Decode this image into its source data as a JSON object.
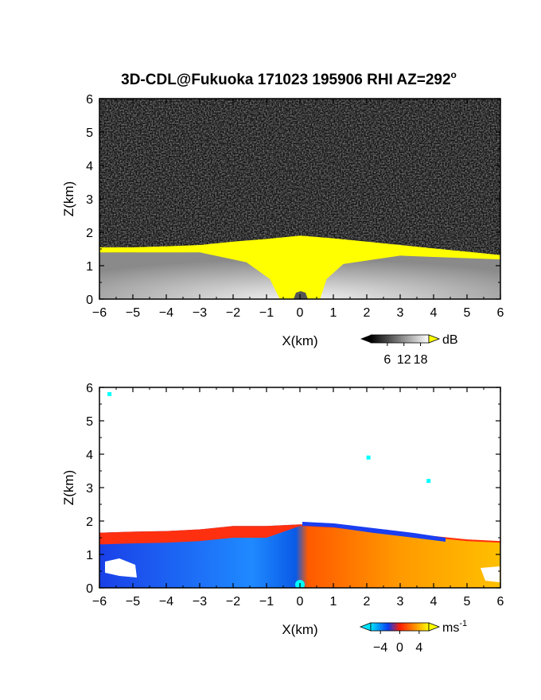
{
  "chart_data": {
    "title": "3D-CDL@Fukuoka 171023 195906 RHI AZ=292",
    "title_superscript": "o",
    "panels": [
      {
        "type": "heatmap",
        "quantity": "backscatter intensity",
        "xlabel": "X(km)",
        "ylabel": "Z(km)",
        "xlim": [
          -6,
          6
        ],
        "ylim": [
          0,
          6
        ],
        "xticks": [
          -6,
          -5,
          -4,
          -3,
          -2,
          -1,
          0,
          1,
          2,
          3,
          4,
          5,
          6
        ],
        "yticks": [
          0,
          1,
          2,
          3,
          4,
          5,
          6
        ],
        "colorscale": "grayscale, yellow above top",
        "colorbar": {
          "unit": "dB",
          "ticks": [
            6,
            12,
            18
          ],
          "range": [
            0,
            21
          ],
          "colors": [
            "#000000",
            "#ffffff"
          ],
          "over_color": "#ffff00"
        },
        "layer_top_km": [
          {
            "x": -6,
            "z": 1.55
          },
          {
            "x": -5,
            "z": 1.55
          },
          {
            "x": -4,
            "z": 1.58
          },
          {
            "x": -3,
            "z": 1.62
          },
          {
            "x": -2,
            "z": 1.72
          },
          {
            "x": -1,
            "z": 1.8
          },
          {
            "x": 0,
            "z": 1.9
          },
          {
            "x": 1,
            "z": 1.82
          },
          {
            "x": 2,
            "z": 1.72
          },
          {
            "x": 3,
            "z": 1.62
          },
          {
            "x": 4,
            "z": 1.52
          },
          {
            "x": 5,
            "z": 1.42
          },
          {
            "x": 6,
            "z": 1.32
          }
        ]
      },
      {
        "type": "heatmap",
        "quantity": "radial velocity",
        "xlabel": "X(km)",
        "ylabel": "Z(km)",
        "xlim": [
          -6,
          6
        ],
        "ylim": [
          0,
          6
        ],
        "xticks": [
          -6,
          -5,
          -4,
          -3,
          -2,
          -1,
          0,
          1,
          2,
          3,
          4,
          5,
          6
        ],
        "yticks": [
          0,
          1,
          2,
          3,
          4,
          5,
          6
        ],
        "colorscale": "cyan-blue-red-yellow",
        "colorbar": {
          "unit": "ms",
          "unit_exponent": "-1",
          "ticks": [
            -4,
            0,
            4
          ],
          "tick_labels": [
            "−4",
            "0",
            "4"
          ],
          "range": [
            -6,
            6
          ],
          "colors": [
            "#00e5ff",
            "#0a3cf0",
            "#ff1e00",
            "#ff8c00",
            "#ffff00"
          ]
        },
        "layer_top_km": [
          {
            "x": -6,
            "z": 1.65
          },
          {
            "x": -5,
            "z": 1.68
          },
          {
            "x": -4,
            "z": 1.7
          },
          {
            "x": -3,
            "z": 1.75
          },
          {
            "x": -2,
            "z": 1.85
          },
          {
            "x": -1,
            "z": 1.85
          },
          {
            "x": 0,
            "z": 1.9
          },
          {
            "x": 1,
            "z": 1.85
          },
          {
            "x": 2,
            "z": 1.75
          },
          {
            "x": 3,
            "z": 1.65
          },
          {
            "x": 4,
            "z": 1.55
          },
          {
            "x": 5,
            "z": 1.45
          },
          {
            "x": 6,
            "z": 1.4
          }
        ],
        "isolated_points_km": [
          {
            "x": -5.7,
            "z": 5.8
          },
          {
            "x": 2.05,
            "z": 3.9
          },
          {
            "x": 3.85,
            "z": 3.2
          }
        ]
      }
    ]
  }
}
